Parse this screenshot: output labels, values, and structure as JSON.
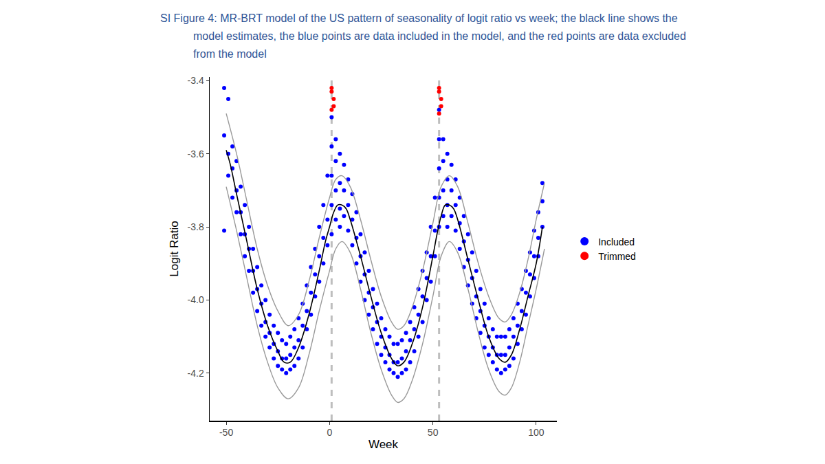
{
  "chart_data": {
    "type": "scatter",
    "title": "SI Figure 4: MR-BRT model of the US pattern of seasonality of logit ratio vs week; the black line shows the model estimates, the blue points are data included in the model, and the red points are data excluded from the model",
    "x_label": "Week",
    "y_label": "Logit Ratio",
    "xlim": [
      -58,
      110
    ],
    "ylim": [
      -4.33,
      -3.39
    ],
    "xticks": [
      -50,
      0,
      50,
      100
    ],
    "yticks": [
      -4.2,
      {
        "value": -4,
        "label": "-4.0"
      },
      -3.8,
      -3.6,
      -3.4
    ],
    "grid": false,
    "legend": "right",
    "reference_lines": {
      "x": [
        1,
        53
      ]
    },
    "series": [
      {
        "name": "Included",
        "type": "scatter",
        "marker": "circle",
        "color": "#0000ff",
        "x": [
          -51,
          -51,
          -51,
          -49,
          -49,
          -49,
          -47,
          -47,
          -47,
          -45,
          -45,
          -45,
          -43,
          -43,
          -43,
          -41,
          -41,
          -41,
          -39,
          -39,
          -39,
          -37,
          -37,
          -37,
          -35,
          -35,
          -35,
          -33,
          -33,
          -33,
          -31,
          -31,
          -31,
          -29,
          -29,
          -29,
          -27,
          -27,
          -27,
          -25,
          -25,
          -25,
          -23,
          -23,
          -23,
          -21,
          -21,
          -21,
          -19,
          -19,
          -19,
          -17,
          -17,
          -17,
          -15,
          -15,
          -15,
          -13,
          -13,
          -13,
          -11,
          -11,
          -11,
          -9,
          -9,
          -9,
          -7,
          -7,
          -7,
          -5,
          -5,
          -5,
          -3,
          -3,
          -3,
          -1,
          -1,
          -1,
          1,
          1,
          1,
          1,
          1,
          3,
          3,
          3,
          3,
          5,
          5,
          5,
          5,
          7,
          7,
          7,
          9,
          9,
          9,
          11,
          11,
          11,
          13,
          13,
          13,
          15,
          15,
          15,
          17,
          17,
          17,
          19,
          19,
          19,
          21,
          21,
          21,
          23,
          23,
          23,
          25,
          25,
          25,
          27,
          27,
          27,
          29,
          29,
          29,
          31,
          31,
          31,
          33,
          33,
          33,
          35,
          35,
          35,
          37,
          37,
          37,
          39,
          39,
          39,
          41,
          41,
          41,
          43,
          43,
          43,
          45,
          45,
          45,
          47,
          47,
          47,
          49,
          49,
          49,
          51,
          51,
          51,
          53,
          53,
          53,
          53,
          53,
          55,
          55,
          55,
          55,
          57,
          57,
          57,
          57,
          59,
          59,
          59,
          61,
          61,
          61,
          63,
          63,
          63,
          65,
          65,
          65,
          67,
          67,
          67,
          69,
          69,
          69,
          71,
          71,
          71,
          73,
          73,
          73,
          75,
          75,
          75,
          77,
          77,
          77,
          79,
          79,
          79,
          81,
          81,
          81,
          83,
          83,
          83,
          85,
          85,
          85,
          87,
          87,
          87,
          89,
          89,
          89,
          91,
          91,
          91,
          93,
          93,
          93,
          95,
          95,
          95,
          97,
          97,
          97,
          99,
          99,
          99,
          101,
          101,
          101,
          103,
          103,
          103
        ],
        "values": [
          -3.42,
          -3.55,
          -3.81,
          -3.45,
          -3.6,
          -3.66,
          -3.58,
          -3.64,
          -3.72,
          -3.62,
          -3.7,
          -3.76,
          -3.69,
          -3.76,
          -3.82,
          -3.74,
          -3.82,
          -3.88,
          -3.8,
          -3.86,
          -3.92,
          -3.86,
          -3.92,
          -3.98,
          -3.91,
          -3.97,
          -4.03,
          -3.96,
          -4.01,
          -4.07,
          -4.0,
          -4.06,
          -4.1,
          -4.04,
          -4.09,
          -4.13,
          -4.07,
          -4.12,
          -4.16,
          -4.09,
          -4.14,
          -4.18,
          -4.11,
          -4.16,
          -4.19,
          -4.12,
          -4.16,
          -4.2,
          -4.1,
          -4.15,
          -4.19,
          -4.08,
          -4.13,
          -4.18,
          -4.05,
          -4.11,
          -4.16,
          -4.01,
          -4.07,
          -4.13,
          -3.96,
          -4.03,
          -4.08,
          -3.91,
          -3.98,
          -4.04,
          -3.86,
          -3.93,
          -3.99,
          -3.8,
          -3.88,
          -3.95,
          -3.74,
          -3.83,
          -3.9,
          -3.66,
          -3.78,
          -3.85,
          -3.5,
          -3.58,
          -3.66,
          -3.74,
          -3.82,
          -3.56,
          -3.62,
          -3.7,
          -3.78,
          -3.6,
          -3.68,
          -3.75,
          -3.8,
          -3.63,
          -3.7,
          -3.77,
          -3.67,
          -3.74,
          -3.81,
          -3.71,
          -3.78,
          -3.85,
          -3.76,
          -3.83,
          -3.9,
          -3.82,
          -3.88,
          -3.95,
          -3.87,
          -3.93,
          -4.0,
          -3.92,
          -3.98,
          -4.04,
          -3.97,
          -4.02,
          -4.08,
          -4.01,
          -4.06,
          -4.12,
          -4.05,
          -4.1,
          -4.15,
          -4.08,
          -4.13,
          -4.17,
          -4.1,
          -4.15,
          -4.19,
          -4.12,
          -4.17,
          -4.2,
          -4.12,
          -4.17,
          -4.21,
          -4.11,
          -4.16,
          -4.2,
          -4.09,
          -4.14,
          -4.19,
          -4.06,
          -4.11,
          -4.17,
          -4.02,
          -4.08,
          -4.14,
          -3.97,
          -4.04,
          -4.1,
          -3.92,
          -3.99,
          -4.06,
          -3.87,
          -3.94,
          -4.0,
          -3.8,
          -3.88,
          -3.95,
          -3.72,
          -3.81,
          -3.88,
          -3.48,
          -3.56,
          -3.64,
          -3.72,
          -3.8,
          -3.56,
          -3.62,
          -3.7,
          -3.77,
          -3.6,
          -3.67,
          -3.74,
          -3.8,
          -3.63,
          -3.7,
          -3.77,
          -3.67,
          -3.74,
          -3.81,
          -3.72,
          -3.79,
          -3.86,
          -3.77,
          -3.84,
          -3.91,
          -3.82,
          -3.89,
          -3.96,
          -3.87,
          -3.94,
          -4.01,
          -3.92,
          -3.99,
          -4.05,
          -3.97,
          -4.03,
          -4.09,
          -4.01,
          -4.07,
          -4.13,
          -4.05,
          -4.1,
          -4.15,
          -4.08,
          -4.13,
          -4.17,
          -4.1,
          -4.15,
          -4.19,
          -4.1,
          -4.15,
          -4.2,
          -4.1,
          -4.15,
          -4.19,
          -4.08,
          -4.13,
          -4.18,
          -4.05,
          -4.1,
          -4.16,
          -4.01,
          -4.07,
          -4.12,
          -3.97,
          -4.03,
          -4.08,
          -3.92,
          -3.98,
          -4.04,
          -3.87,
          -3.93,
          -3.99,
          -3.81,
          -3.88,
          -3.94,
          -3.76,
          -3.83,
          -3.88,
          -3.68,
          -3.73,
          -3.8
        ]
      },
      {
        "name": "Trimmed",
        "type": "scatter",
        "marker": "circle",
        "color": "#ff0000",
        "x": [
          1,
          1,
          1,
          2,
          2,
          53,
          53,
          53,
          54,
          54
        ],
        "values": [
          -3.42,
          -3.43,
          -3.48,
          -3.45,
          -3.47,
          -3.42,
          -3.43,
          -3.49,
          -3.45,
          -3.47
        ]
      },
      {
        "type": "line",
        "color": "#999999",
        "x": [
          -50,
          -45,
          -40,
          -35,
          -30,
          -25,
          -20,
          -15,
          -10,
          -5,
          0,
          3,
          6,
          10,
          15,
          20,
          25,
          30,
          33,
          36,
          40,
          45,
          50,
          54,
          58,
          62,
          67,
          72,
          77,
          82,
          85,
          88,
          92,
          96,
          100,
          104
        ],
        "values": [
          -3.49,
          -3.6,
          -3.73,
          -3.86,
          -3.96,
          -4.03,
          -4.07,
          -4.04,
          -3.95,
          -3.83,
          -3.72,
          -3.67,
          -3.66,
          -3.69,
          -3.78,
          -3.89,
          -3.99,
          -4.06,
          -4.08,
          -4.07,
          -4.02,
          -3.92,
          -3.79,
          -3.69,
          -3.66,
          -3.69,
          -3.79,
          -3.9,
          -3.99,
          -4.05,
          -4.06,
          -4.04,
          -3.98,
          -3.89,
          -3.78,
          -3.68
        ]
      },
      {
        "type": "line",
        "color": "#999999",
        "x": [
          -50,
          -45,
          -40,
          -35,
          -30,
          -25,
          -20,
          -15,
          -10,
          -5,
          0,
          3,
          6,
          10,
          15,
          20,
          25,
          30,
          33,
          36,
          40,
          45,
          50,
          54,
          58,
          62,
          67,
          72,
          77,
          82,
          85,
          88,
          92,
          96,
          100,
          104
        ],
        "values": [
          -3.69,
          -3.81,
          -3.94,
          -4.07,
          -4.17,
          -4.24,
          -4.27,
          -4.24,
          -4.15,
          -4.03,
          -3.92,
          -3.86,
          -3.84,
          -3.87,
          -3.97,
          -4.09,
          -4.19,
          -4.26,
          -4.28,
          -4.27,
          -4.22,
          -4.12,
          -3.99,
          -3.88,
          -3.84,
          -3.87,
          -3.97,
          -4.09,
          -4.19,
          -4.25,
          -4.26,
          -4.24,
          -4.17,
          -4.07,
          -3.97,
          -3.86
        ]
      },
      {
        "type": "line",
        "color": "#000000",
        "x": [
          -50,
          -48,
          -45,
          -40,
          -35,
          -30,
          -25,
          -22,
          -19,
          -15,
          -10,
          -5,
          -2,
          0,
          2,
          4,
          6,
          8,
          10,
          15,
          20,
          25,
          30,
          33,
          36,
          40,
          45,
          50,
          52,
          54,
          56,
          58,
          60,
          62,
          67,
          72,
          77,
          82,
          85,
          88,
          92,
          96,
          100,
          103
        ],
        "values": [
          -3.59,
          -3.63,
          -3.71,
          -3.84,
          -3.97,
          -4.07,
          -4.14,
          -4.17,
          -4.17,
          -4.13,
          -4.04,
          -3.92,
          -3.84,
          -3.8,
          -3.76,
          -3.74,
          -3.74,
          -3.75,
          -3.78,
          -3.88,
          -3.99,
          -4.09,
          -4.16,
          -4.18,
          -4.17,
          -4.12,
          -4.02,
          -3.88,
          -3.82,
          -3.77,
          -3.74,
          -3.74,
          -3.75,
          -3.78,
          -3.89,
          -4.0,
          -4.1,
          -4.16,
          -4.17,
          -4.15,
          -4.08,
          -3.99,
          -3.9,
          -3.8
        ]
      }
    ]
  }
}
